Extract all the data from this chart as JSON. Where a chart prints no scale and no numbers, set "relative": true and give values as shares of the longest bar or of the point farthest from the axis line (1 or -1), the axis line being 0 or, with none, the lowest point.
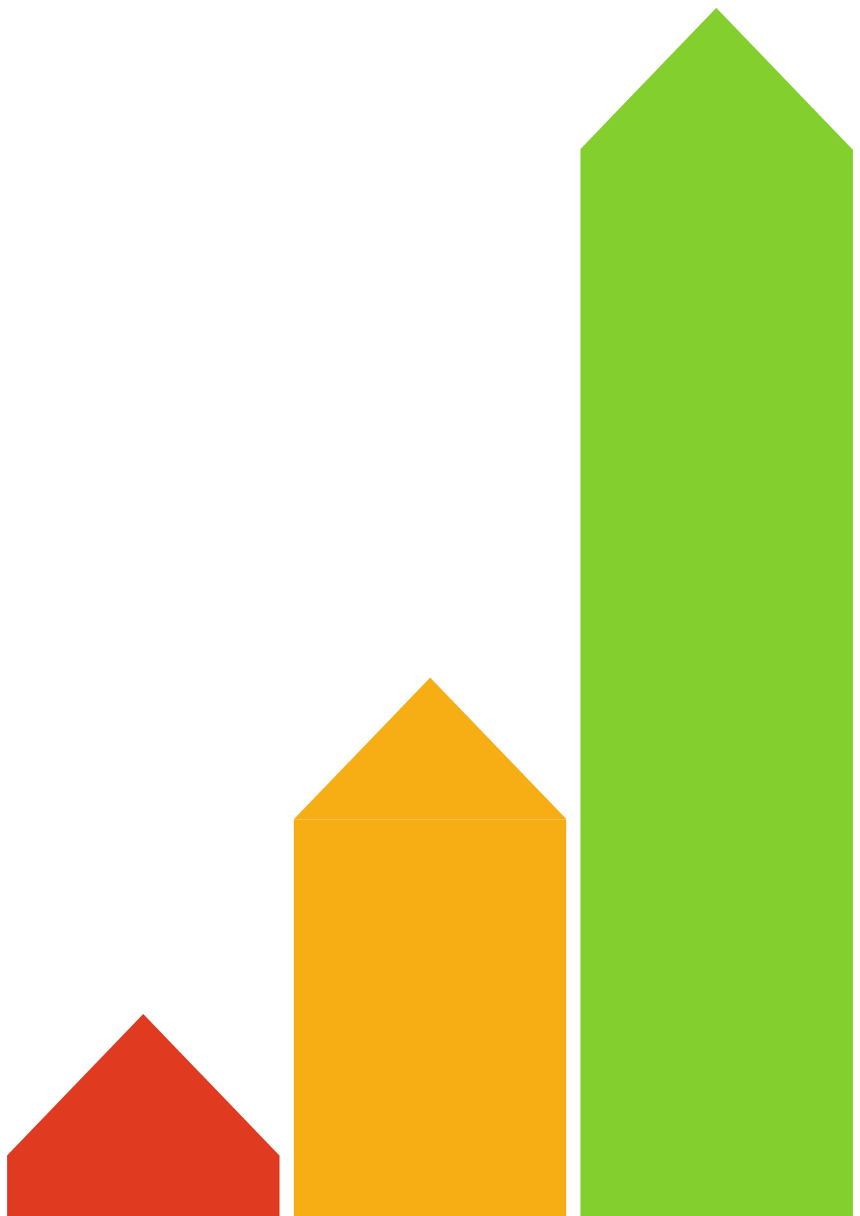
{
  "chart_data": {
    "type": "bar",
    "relative": true,
    "categories": [
      null,
      null,
      null
    ],
    "values": [
      0.057,
      0.372,
      1
    ],
    "colors": [
      "#e03a20",
      "#f7ae15",
      "#83cf2e"
    ]
  }
}
